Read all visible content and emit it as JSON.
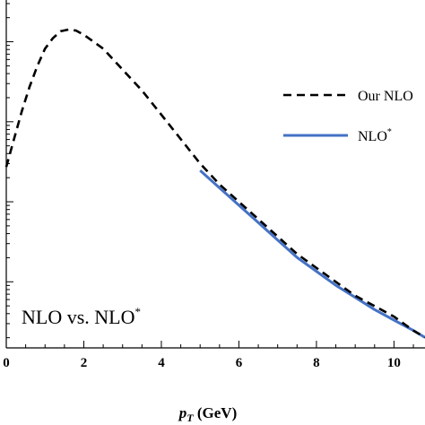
{
  "chart_data": {
    "type": "line",
    "title": "",
    "annotation": "NLO vs. NLO",
    "annotation_sup": "*",
    "xlabel_italic": "p",
    "xlabel_sub": "T",
    "xlabel_unit": " (GeV)",
    "ylabel": "",
    "xlim": [
      0,
      10.8
    ],
    "x_ticks": [
      0,
      2,
      4,
      6,
      8,
      10
    ],
    "x_tick_labels": [
      "0",
      "2",
      "4",
      "6",
      "8",
      "10"
    ],
    "y_log_scale": true,
    "grid": false,
    "legend_position": "right",
    "series": [
      {
        "name": "Our NLO",
        "style": "dashed",
        "color": "#000000",
        "x": [
          0,
          0.2,
          0.4,
          0.6,
          0.8,
          1.0,
          1.2,
          1.4,
          1.6,
          1.8,
          2.0,
          2.5,
          3.0,
          3.5,
          4.0,
          4.5,
          5.0,
          5.5,
          6.0,
          6.5,
          7.0,
          7.5,
          8.0,
          8.5,
          9.0,
          9.5,
          10.0,
          10.5,
          10.8
        ],
        "y": [
          0.52,
          0.6,
          0.68,
          0.75,
          0.81,
          0.86,
          0.89,
          0.91,
          0.915,
          0.912,
          0.9,
          0.86,
          0.8,
          0.74,
          0.67,
          0.6,
          0.53,
          0.47,
          0.42,
          0.37,
          0.32,
          0.27,
          0.23,
          0.19,
          0.15,
          0.12,
          0.09,
          0.05,
          0.03
        ]
      },
      {
        "name": "NLO",
        "name_sup": "*",
        "style": "solid",
        "color": "#4472c4",
        "x": [
          5.0,
          5.5,
          6.0,
          6.5,
          7.0,
          7.5,
          8.0,
          8.5,
          9.0,
          9.5,
          10.0,
          10.5,
          10.8
        ],
        "y": [
          0.51,
          0.46,
          0.41,
          0.36,
          0.31,
          0.26,
          0.22,
          0.18,
          0.145,
          0.11,
          0.08,
          0.05,
          0.03
        ]
      }
    ]
  }
}
